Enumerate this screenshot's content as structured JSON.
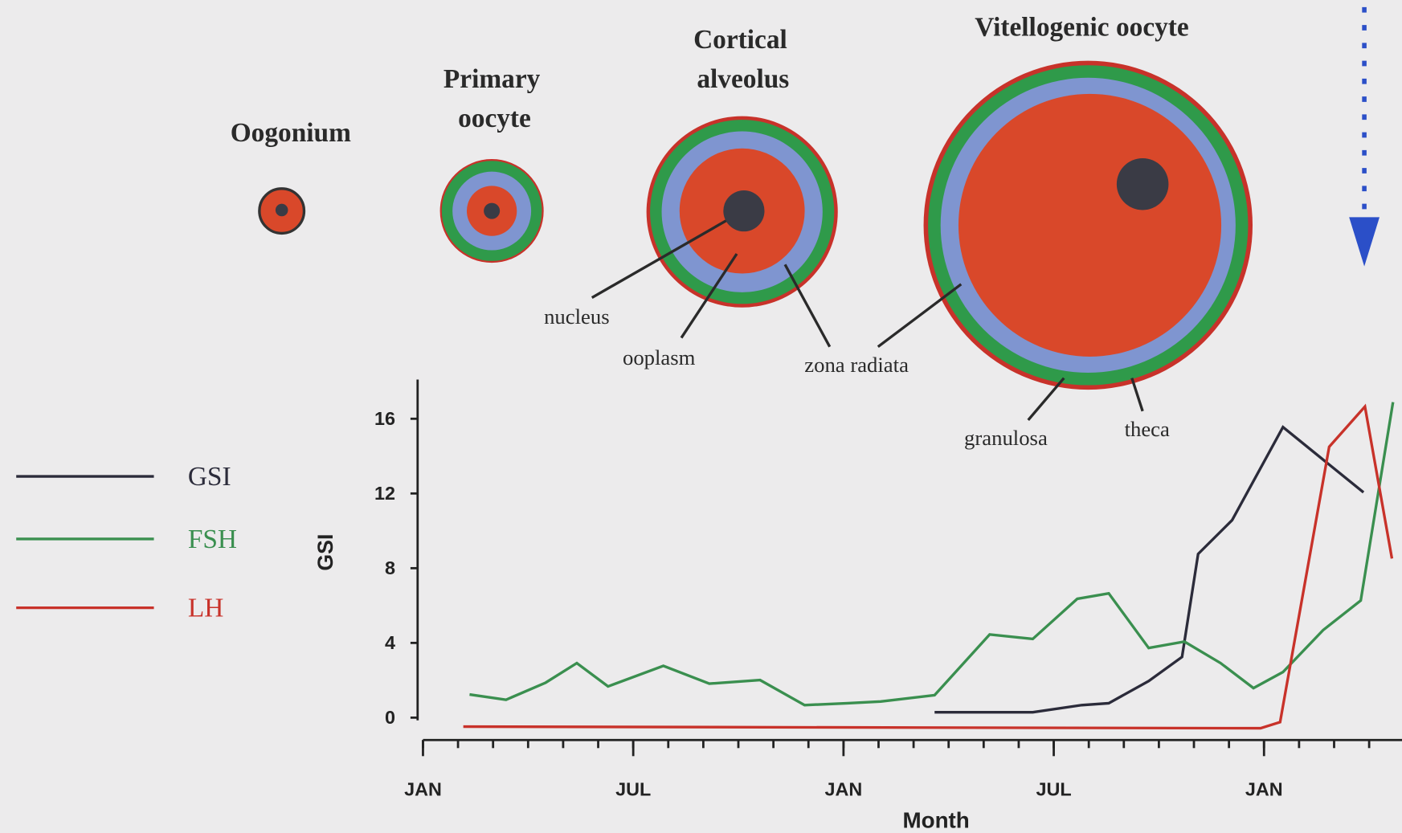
{
  "diagram": {
    "stages": [
      [
        "Oogonium"
      ],
      [
        "Primary",
        "oocyte"
      ],
      [
        "Cortical",
        "alveolus"
      ],
      [
        "Vitellogenic oocyte"
      ]
    ],
    "parts": [
      "nucleus",
      "ooplasm",
      "zona radiata",
      "granulosa",
      "theca"
    ]
  },
  "chart_data": {
    "type": "line",
    "x_label": "Month",
    "y_label": "GSI",
    "xlim": [
      0,
      27.8
    ],
    "ylim": [
      -1.2,
      18.1
    ],
    "xticks": [
      {
        "value": 0,
        "label": "JAN"
      },
      {
        "value": 6,
        "label": "JUL"
      },
      {
        "value": 12,
        "label": "JAN"
      },
      {
        "value": 18,
        "label": "JUL"
      },
      {
        "value": 24,
        "label": "JAN"
      }
    ],
    "xminorticks": [
      0,
      1,
      2,
      3,
      4,
      5,
      6,
      7,
      8,
      9,
      10,
      11,
      12,
      13,
      14,
      15,
      16,
      17,
      18,
      19,
      20,
      21,
      22,
      23,
      24,
      25,
      26,
      27
    ],
    "yticks": [
      0,
      4,
      8,
      12,
      16
    ],
    "series": [
      {
        "name": "GSI",
        "color": "#2b2b3a",
        "x": [
          14.6,
          17.4,
          18.8,
          19.57,
          20.71,
          21.66,
          22.12,
          23.09,
          24.54,
          26.84
        ],
        "values": [
          0.29,
          0.29,
          0.67,
          0.77,
          1.96,
          3.25,
          8.76,
          10.57,
          15.55,
          12.06
        ]
      },
      {
        "name": "FSH",
        "color": "#3a8f4f",
        "x": [
          1.33,
          2.37,
          3.5,
          4.39,
          5.28,
          6.86,
          8.17,
          9.62,
          10.89,
          12.12,
          13.06,
          14.6,
          16.17,
          17.4,
          18.67,
          19.57,
          20.71,
          21.73,
          22.76,
          23.7,
          24.54,
          25.69,
          26.76,
          27.68
        ],
        "values": [
          1.24,
          0.96,
          1.87,
          2.92,
          1.67,
          2.77,
          1.82,
          2.01,
          0.67,
          0.77,
          0.86,
          1.2,
          4.45,
          4.21,
          6.36,
          6.65,
          3.73,
          4.07,
          2.92,
          1.58,
          2.44,
          4.69,
          6.27,
          16.89
        ]
      },
      {
        "name": "LH",
        "color": "#c8322a",
        "x": [
          1.15,
          23.9,
          24.46,
          25.86,
          26.88,
          27.65
        ],
        "values": [
          -0.48,
          -0.57,
          -0.24,
          14.5,
          16.65,
          8.52
        ]
      }
    ]
  }
}
